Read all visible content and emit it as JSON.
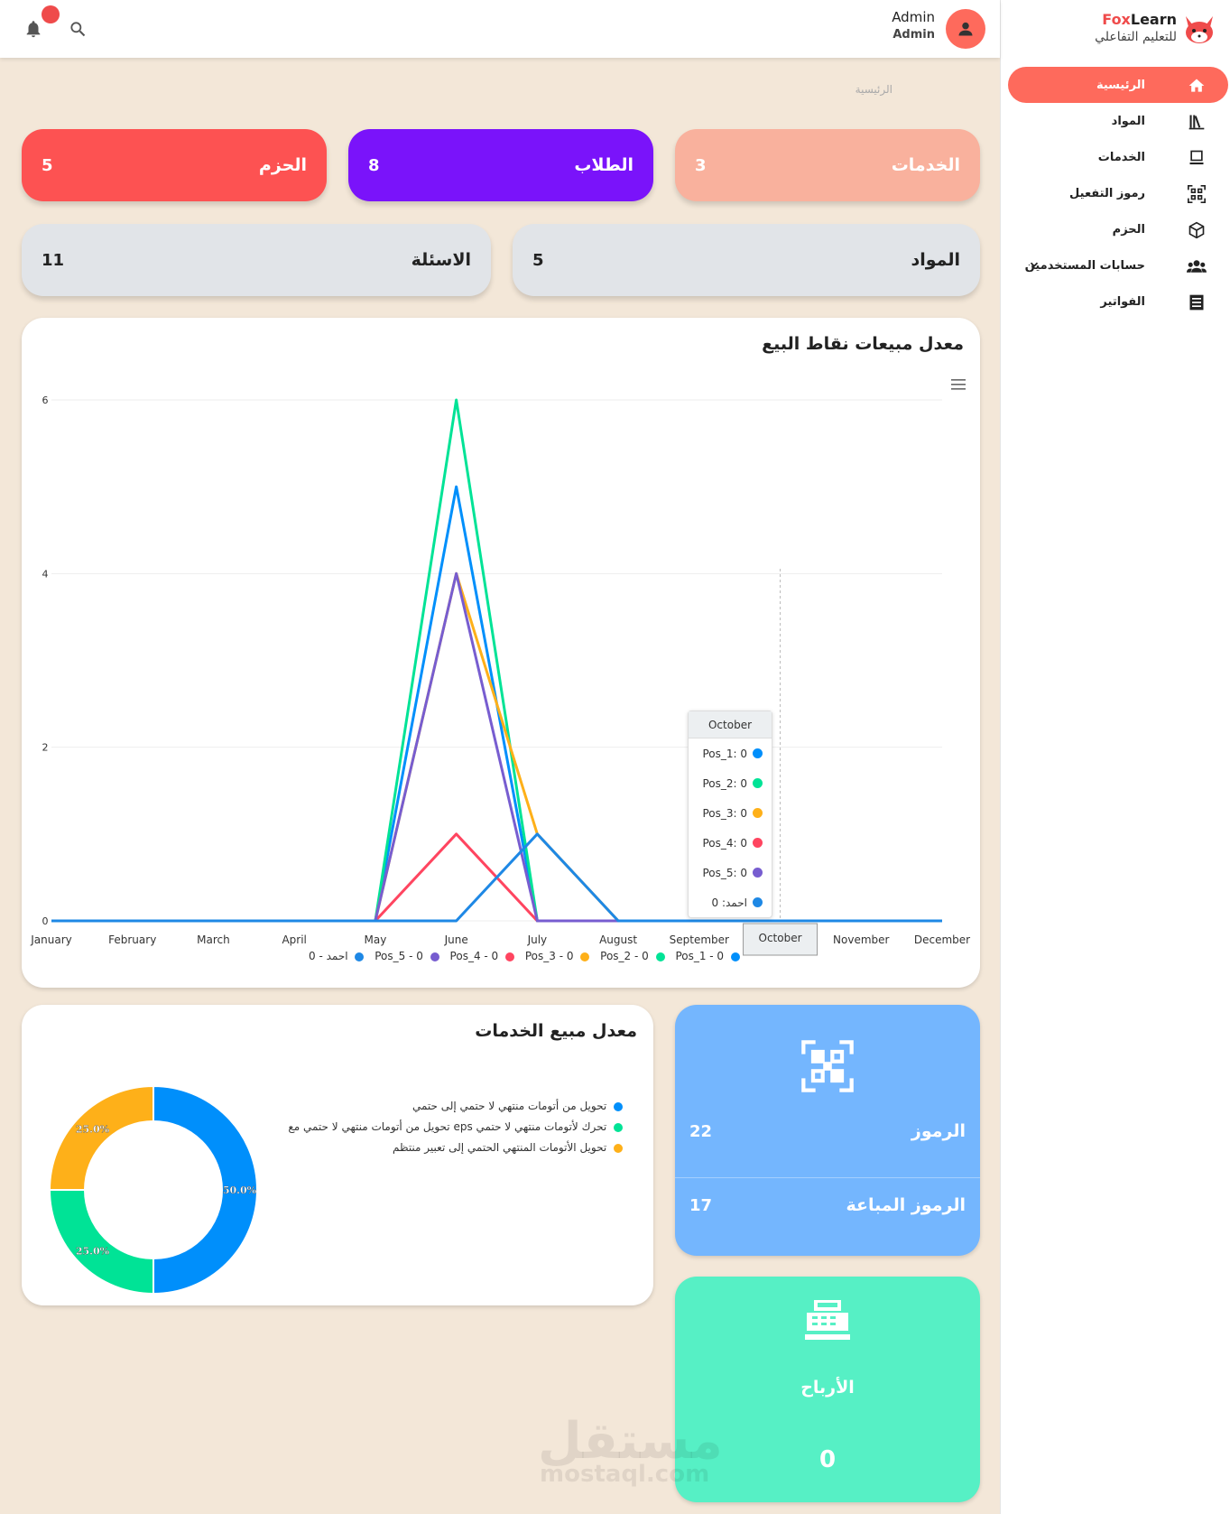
{
  "brand": {
    "name_prefix": "Fox",
    "name_suffix": "Learn",
    "subtitle": "للتعليم التفاعلي"
  },
  "sidebar": {
    "items": [
      {
        "label": "الرئيسية",
        "icon": "home-icon",
        "active": true
      },
      {
        "label": "المواد",
        "icon": "library-icon"
      },
      {
        "label": "الخدمات",
        "icon": "laptop-icon"
      },
      {
        "label": "رموز التفعيل",
        "icon": "qr-icon"
      },
      {
        "label": "الحزم",
        "icon": "package-icon"
      },
      {
        "label": "حسابات المستخدمين",
        "icon": "users-icon",
        "expandable": true
      },
      {
        "label": "الفواتير",
        "icon": "invoice-icon"
      }
    ]
  },
  "topbar": {
    "user_name": "Admin",
    "user_role": "Admin"
  },
  "breadcrumb": "الرئيسية",
  "stats": [
    {
      "label": "الحزم",
      "value": "5",
      "color": "#fd5252"
    },
    {
      "label": "الطلاب",
      "value": "8",
      "color": "#7a13fa"
    },
    {
      "label": "الخدمات",
      "value": "3",
      "color": "#f9b19d"
    },
    {
      "label": "الاسئلة",
      "value": "11",
      "color": "#e1e4e8"
    },
    {
      "label": "المواد",
      "value": "5",
      "color": "#e1e4e8"
    }
  ],
  "sales_chart": {
    "title": "معدل مبيعات نقاط البيع",
    "chart_data": {
      "type": "line",
      "categories": [
        "January",
        "February",
        "March",
        "April",
        "May",
        "June",
        "July",
        "August",
        "September",
        "October",
        "November",
        "December"
      ],
      "ylim": [
        0,
        6
      ],
      "yticks": [
        "0",
        "2",
        "4",
        "6"
      ],
      "grid": true,
      "legend_placement": "bottom",
      "series": [
        {
          "name": "Pos_1",
          "color": "#008ffb",
          "values": [
            0,
            0,
            0,
            0,
            0,
            5,
            0,
            0,
            0,
            0,
            0,
            0
          ]
        },
        {
          "name": "Pos_2",
          "color": "#00e396",
          "values": [
            0,
            0,
            0,
            0,
            0,
            6,
            0,
            0,
            0,
            0,
            0,
            0
          ]
        },
        {
          "name": "Pos_3",
          "color": "#feb019",
          "values": [
            0,
            0,
            0,
            0,
            0,
            4,
            1,
            0,
            0,
            0,
            0,
            0
          ]
        },
        {
          "name": "Pos_4",
          "color": "#ff4560",
          "values": [
            0,
            0,
            0,
            0,
            0,
            1,
            0,
            0,
            0,
            0,
            0,
            0
          ]
        },
        {
          "name": "Pos_5",
          "color": "#775dd0",
          "values": [
            0,
            0,
            0,
            0,
            0,
            4,
            0,
            0,
            0,
            0,
            0,
            0
          ]
        },
        {
          "name": "احمد",
          "color": "#1e88e5",
          "values": [
            0,
            0,
            0,
            0,
            0,
            0,
            1,
            0,
            0,
            0,
            0,
            0
          ]
        }
      ]
    },
    "legend": [
      "احمد - 0",
      "Pos_5 - 0",
      "Pos_4 - 0",
      "Pos_3 - 0",
      "Pos_2 - 0",
      "Pos_1 - 0"
    ],
    "tooltip": {
      "title": "October",
      "rows": [
        {
          "text": "Pos_1: 0",
          "color": "#008ffb"
        },
        {
          "text": "Pos_2: 0",
          "color": "#00e396"
        },
        {
          "text": "Pos_3: 0",
          "color": "#feb019"
        },
        {
          "text": "Pos_4: 0",
          "color": "#ff4560"
        },
        {
          "text": "Pos_5: 0",
          "color": "#775dd0"
        },
        {
          "text": "احمد: 0",
          "color": "#1e88e5"
        }
      ]
    }
  },
  "services_chart": {
    "title": "معدل مبيع الخدمات",
    "chart_data": {
      "type": "pie",
      "series": [
        {
          "name": "تحويل من أتومات منتهي لا حتمي إلى حتمي",
          "value": 50.0,
          "color": "#008ffb"
        },
        {
          "name": "تحويل من أتومات منتهي لا حتمي مع eps تحرك لأتومات منتهي لا حتمي",
          "value": 25.0,
          "color": "#00e396"
        },
        {
          "name": "تحويل الأتومات المنتهي الحتمي إلى تعبير منتظم",
          "value": 25.0,
          "color": "#feb019"
        }
      ],
      "labels": [
        "50.0%",
        "25.0%",
        "25.0%"
      ]
    }
  },
  "codes_card": {
    "codes_label": "الرموز",
    "codes_value": "22",
    "sold_label": "الرموز المباعة",
    "sold_value": "17"
  },
  "profit_card": {
    "label": "الأرباح",
    "value": "0"
  },
  "watermark": {
    "text": "مستقل",
    "domain": "mostaql.com"
  }
}
